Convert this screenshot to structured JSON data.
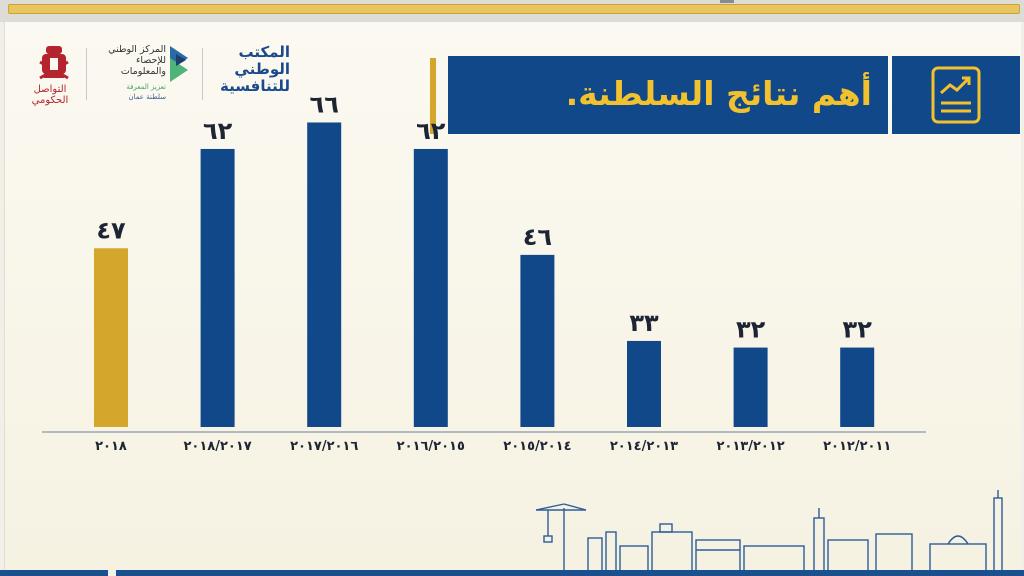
{
  "header": {
    "title": "أهم نتائج السلطنة."
  },
  "logos": {
    "emblem_caption": "التواصل الحكومي",
    "nsi_name": "المركز الوطني للإحصاء والمعلومات",
    "nsi_slogan": "تعزيز المعرفة",
    "nsi_country": "سلطنة عمان",
    "ncc_name": "المكتب الوطني للتنافسية"
  },
  "icons": {
    "title_icon": "trend-report-icon",
    "emblem": "oman-emblem-icon",
    "skyline": "city-skyline-illustration"
  },
  "colors": {
    "bar_primary": "#11488a",
    "bar_highlight": "#d4a72c",
    "title_text": "#f2c12e",
    "banner": "#11488a"
  },
  "chart_data": {
    "type": "bar",
    "categories": [
      "٢٠١٨",
      "٢٠١٨/٢٠١٧",
      "٢٠١٧/٢٠١٦",
      "٢٠١٦/٢٠١٥",
      "٢٠١٥/٢٠١٤",
      "٢٠١٤/٢٠١٣",
      "٢٠١٣/٢٠١٢",
      "٢٠١٢/٢٠١١"
    ],
    "values": [
      47,
      62,
      66,
      62,
      46,
      33,
      32,
      32
    ],
    "value_labels": [
      "٤٧",
      "٦٢",
      "٦٦",
      "٦٢",
      "٤٦",
      "٣٣",
      "٣٢",
      "٣٢"
    ],
    "highlight_index": 0,
    "title": "",
    "xlabel": "",
    "ylabel": "",
    "ylim": [
      20,
      70
    ],
    "grid": false,
    "legend": "none"
  }
}
